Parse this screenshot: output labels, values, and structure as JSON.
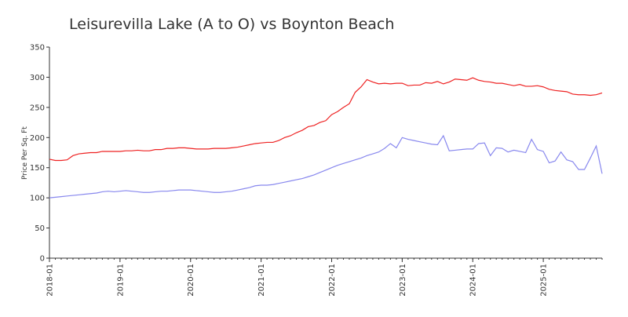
{
  "chart_data": {
    "type": "line",
    "title": "Leisurevilla Lake (A to O) vs Boynton Beach",
    "y_label": "Price Per Sq. Ft",
    "x": [
      "2018-01",
      "2018-02",
      "2018-03",
      "2018-04",
      "2018-05",
      "2018-06",
      "2018-07",
      "2018-08",
      "2018-09",
      "2018-10",
      "2018-11",
      "2018-12",
      "2019-01",
      "2019-02",
      "2019-03",
      "2019-04",
      "2019-05",
      "2019-06",
      "2019-07",
      "2019-08",
      "2019-09",
      "2019-10",
      "2019-11",
      "2019-12",
      "2020-01",
      "2020-02",
      "2020-03",
      "2020-04",
      "2020-05",
      "2020-06",
      "2020-07",
      "2020-08",
      "2020-09",
      "2020-10",
      "2020-11",
      "2020-12",
      "2021-01",
      "2021-02",
      "2021-03",
      "2021-04",
      "2021-05",
      "2021-06",
      "2021-07",
      "2021-08",
      "2021-09",
      "2021-10",
      "2021-11",
      "2021-12",
      "2022-01",
      "2022-02",
      "2022-03",
      "2022-04",
      "2022-05",
      "2022-06",
      "2022-07",
      "2022-08",
      "2022-09",
      "2022-10",
      "2022-11",
      "2022-12",
      "2023-01",
      "2023-02",
      "2023-03",
      "2023-04",
      "2023-05",
      "2023-06",
      "2023-07",
      "2023-08",
      "2023-09",
      "2023-10",
      "2023-11",
      "2023-12",
      "2024-01",
      "2024-02",
      "2024-03",
      "2024-04",
      "2024-05",
      "2024-06",
      "2024-07",
      "2024-08",
      "2024-09",
      "2024-10",
      "2024-11",
      "2024-12",
      "2025-01",
      "2025-02",
      "2025-03",
      "2025-04",
      "2025-05",
      "2025-06",
      "2025-07",
      "2025-08",
      "2025-09",
      "2025-10",
      "2025-11"
    ],
    "series": [
      {
        "color": "#ee2222",
        "values": [
          164,
          162,
          162,
          163,
          170,
          173,
          174,
          175,
          175,
          177,
          177,
          177,
          177,
          178,
          178,
          179,
          178,
          178,
          180,
          180,
          182,
          182,
          183,
          183,
          182,
          181,
          181,
          181,
          182,
          182,
          182,
          183,
          184,
          186,
          188,
          190,
          191,
          192,
          192,
          195,
          200,
          203,
          208,
          212,
          218,
          220,
          225,
          228,
          238,
          243,
          250,
          256,
          275,
          284,
          296,
          292,
          289,
          290,
          289,
          290,
          290,
          286,
          287,
          287,
          291,
          290,
          293,
          289,
          292,
          297,
          296,
          295,
          299,
          295,
          293,
          292,
          290,
          290,
          288,
          286,
          288,
          285,
          285,
          286,
          284,
          280,
          278,
          277,
          276,
          272,
          271,
          271,
          270,
          271,
          274
        ]
      },
      {
        "color": "#8888ee",
        "values": [
          100,
          101,
          102,
          103,
          104,
          105,
          106,
          107,
          108,
          110,
          111,
          110,
          111,
          112,
          111,
          110,
          109,
          109,
          110,
          111,
          111,
          112,
          113,
          113,
          113,
          112,
          111,
          110,
          109,
          109,
          110,
          111,
          113,
          115,
          117,
          120,
          121,
          121,
          122,
          124,
          126,
          128,
          130,
          132,
          135,
          138,
          142,
          146,
          150,
          154,
          157,
          160,
          163,
          166,
          170,
          173,
          176,
          182,
          190,
          183,
          200,
          197,
          195,
          193,
          191,
          189,
          188,
          203,
          178,
          179,
          180,
          181,
          181,
          190,
          191,
          170,
          183,
          182,
          176,
          179,
          177,
          175,
          197,
          180,
          177,
          158,
          161,
          176,
          163,
          160,
          147,
          147,
          166,
          186,
          140
        ]
      }
    ],
    "ylim": [
      0,
      350
    ],
    "yticks": [
      0,
      50,
      100,
      150,
      200,
      250,
      300,
      350
    ],
    "xticks": [
      "2018-01",
      "2019-01",
      "2020-01",
      "2021-01",
      "2022-01",
      "2023-01",
      "2024-01",
      "2025-01"
    ]
  }
}
